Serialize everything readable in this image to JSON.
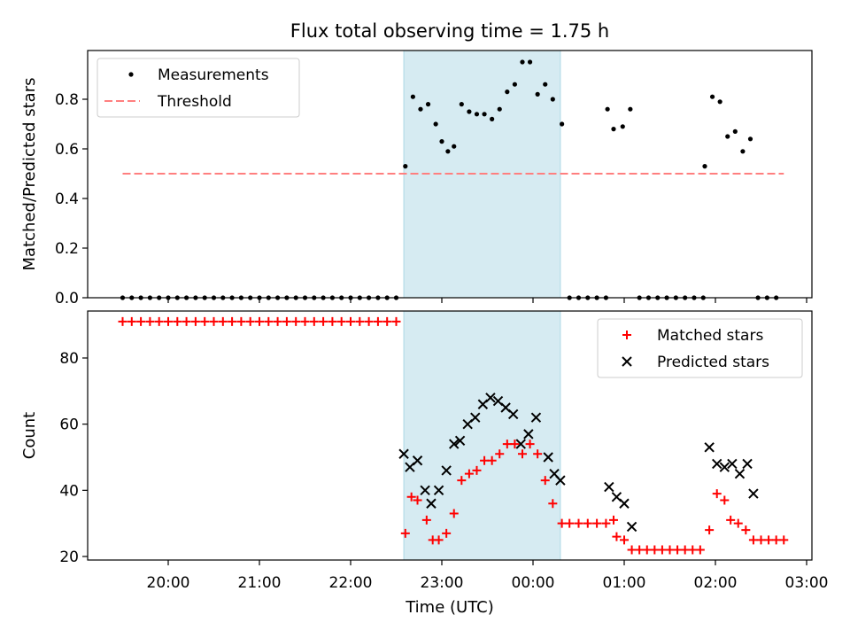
{
  "chart_data": [
    {
      "type": "scatter",
      "title": "Flux total observing time = 1.75 h",
      "xlabel": "",
      "ylabel": "Matched/Predicted stars",
      "ylim": [
        0,
        1.0
      ],
      "yticks": [
        "0.0",
        "0.2",
        "0.4",
        "0.6",
        "0.8"
      ],
      "shaded_interval": [
        "22:35",
        "00:18"
      ],
      "shade_color": "#add8e6",
      "legend_position": "top-left",
      "series": [
        {
          "name": "Measurements",
          "marker": "dot",
          "color": "#000000",
          "points": [
            [
              "19:30",
              0
            ],
            [
              "19:36",
              0
            ],
            [
              "19:42",
              0
            ],
            [
              "19:48",
              0
            ],
            [
              "19:54",
              0
            ],
            [
              "20:00",
              0
            ],
            [
              "20:06",
              0
            ],
            [
              "20:12",
              0
            ],
            [
              "20:18",
              0
            ],
            [
              "20:24",
              0
            ],
            [
              "20:30",
              0
            ],
            [
              "20:36",
              0
            ],
            [
              "20:42",
              0
            ],
            [
              "20:48",
              0
            ],
            [
              "20:54",
              0
            ],
            [
              "21:00",
              0
            ],
            [
              "21:06",
              0
            ],
            [
              "21:12",
              0
            ],
            [
              "21:18",
              0
            ],
            [
              "21:24",
              0
            ],
            [
              "21:30",
              0
            ],
            [
              "21:36",
              0
            ],
            [
              "21:42",
              0
            ],
            [
              "21:48",
              0
            ],
            [
              "21:54",
              0
            ],
            [
              "22:00",
              0
            ],
            [
              "22:06",
              0
            ],
            [
              "22:12",
              0
            ],
            [
              "22:18",
              0
            ],
            [
              "22:24",
              0
            ],
            [
              "22:30",
              0
            ],
            [
              "22:36",
              0.53
            ],
            [
              "22:41",
              0.81
            ],
            [
              "22:46",
              0.76
            ],
            [
              "22:51",
              0.78
            ],
            [
              "22:56",
              0.7
            ],
            [
              "23:00",
              0.63
            ],
            [
              "23:04",
              0.59
            ],
            [
              "23:08",
              0.61
            ],
            [
              "23:13",
              0.78
            ],
            [
              "23:18",
              0.75
            ],
            [
              "23:23",
              0.74
            ],
            [
              "23:28",
              0.74
            ],
            [
              "23:33",
              0.72
            ],
            [
              "23:38",
              0.76
            ],
            [
              "23:43",
              0.83
            ],
            [
              "23:48",
              0.86
            ],
            [
              "23:53",
              0.95
            ],
            [
              "23:58",
              0.95
            ],
            [
              "00:03",
              0.82
            ],
            [
              "00:08",
              0.86
            ],
            [
              "00:13",
              0.8
            ],
            [
              "00:19",
              0.7
            ],
            [
              "00:24",
              0
            ],
            [
              "00:30",
              0
            ],
            [
              "00:36",
              0
            ],
            [
              "00:42",
              0
            ],
            [
              "00:48",
              0
            ],
            [
              "00:49",
              0.76
            ],
            [
              "00:53",
              0.68
            ],
            [
              "00:59",
              0.69
            ],
            [
              "01:04",
              0.76
            ],
            [
              "01:10",
              0
            ],
            [
              "01:16",
              0
            ],
            [
              "01:22",
              0
            ],
            [
              "01:28",
              0
            ],
            [
              "01:34",
              0
            ],
            [
              "01:40",
              0
            ],
            [
              "01:46",
              0
            ],
            [
              "01:52",
              0
            ],
            [
              "01:53",
              0.53
            ],
            [
              "01:58",
              0.81
            ],
            [
              "02:03",
              0.79
            ],
            [
              "02:08",
              0.65
            ],
            [
              "02:13",
              0.67
            ],
            [
              "02:18",
              0.59
            ],
            [
              "02:23",
              0.64
            ],
            [
              "02:28",
              0
            ],
            [
              "02:34",
              0
            ],
            [
              "02:40",
              0
            ]
          ]
        },
        {
          "name": "Threshold",
          "marker": "dashed-line",
          "color": "#ff7f7f",
          "points": [
            [
              "19:30",
              0.5
            ],
            [
              "02:45",
              0.5
            ]
          ]
        }
      ]
    },
    {
      "type": "scatter",
      "title": "",
      "xlabel": "Time (UTC)",
      "ylabel": "Count",
      "ylim": [
        19,
        93
      ],
      "yticks": [
        "20",
        "40",
        "60",
        "80"
      ],
      "xticks": [
        "20:00",
        "21:00",
        "22:00",
        "23:00",
        "00:00",
        "01:00",
        "02:00",
        "03:00"
      ],
      "shaded_interval": [
        "22:35",
        "00:18"
      ],
      "shade_color": "#add8e6",
      "legend_position": "top-right",
      "series": [
        {
          "name": "Matched stars",
          "marker": "plus",
          "color": "#ff0000",
          "points": [
            [
              "19:30",
              91
            ],
            [
              "19:36",
              91
            ],
            [
              "19:42",
              91
            ],
            [
              "19:48",
              91
            ],
            [
              "19:54",
              91
            ],
            [
              "20:00",
              91
            ],
            [
              "20:06",
              91
            ],
            [
              "20:12",
              91
            ],
            [
              "20:18",
              91
            ],
            [
              "20:24",
              91
            ],
            [
              "20:30",
              91
            ],
            [
              "20:36",
              91
            ],
            [
              "20:42",
              91
            ],
            [
              "20:48",
              91
            ],
            [
              "20:54",
              91
            ],
            [
              "21:00",
              91
            ],
            [
              "21:06",
              91
            ],
            [
              "21:12",
              91
            ],
            [
              "21:18",
              91
            ],
            [
              "21:24",
              91
            ],
            [
              "21:30",
              91
            ],
            [
              "21:36",
              91
            ],
            [
              "21:42",
              91
            ],
            [
              "21:48",
              91
            ],
            [
              "21:54",
              91
            ],
            [
              "22:00",
              91
            ],
            [
              "22:06",
              91
            ],
            [
              "22:12",
              91
            ],
            [
              "22:18",
              91
            ],
            [
              "22:24",
              91
            ],
            [
              "22:30",
              91
            ],
            [
              "22:36",
              27
            ],
            [
              "22:40",
              38
            ],
            [
              "22:44",
              37
            ],
            [
              "22:50",
              31
            ],
            [
              "22:54",
              25
            ],
            [
              "22:58",
              25
            ],
            [
              "23:03",
              27
            ],
            [
              "23:08",
              33
            ],
            [
              "23:13",
              43
            ],
            [
              "23:18",
              45
            ],
            [
              "23:23",
              46
            ],
            [
              "23:28",
              49
            ],
            [
              "23:33",
              49
            ],
            [
              "23:38",
              51
            ],
            [
              "23:43",
              54
            ],
            [
              "23:48",
              54
            ],
            [
              "23:53",
              51
            ],
            [
              "23:58",
              54
            ],
            [
              "00:03",
              51
            ],
            [
              "00:08",
              43
            ],
            [
              "00:13",
              36
            ],
            [
              "00:19",
              30
            ],
            [
              "00:24",
              30
            ],
            [
              "00:30",
              30
            ],
            [
              "00:36",
              30
            ],
            [
              "00:42",
              30
            ],
            [
              "00:48",
              30
            ],
            [
              "00:53",
              31
            ],
            [
              "00:55",
              26
            ],
            [
              "01:00",
              25
            ],
            [
              "01:05",
              22
            ],
            [
              "01:10",
              22
            ],
            [
              "01:15",
              22
            ],
            [
              "01:20",
              22
            ],
            [
              "01:25",
              22
            ],
            [
              "01:30",
              22
            ],
            [
              "01:35",
              22
            ],
            [
              "01:40",
              22
            ],
            [
              "01:45",
              22
            ],
            [
              "01:50",
              22
            ],
            [
              "01:56",
              28
            ],
            [
              "02:01",
              39
            ],
            [
              "02:06",
              37
            ],
            [
              "02:10",
              31
            ],
            [
              "02:15",
              30
            ],
            [
              "02:20",
              28
            ],
            [
              "02:25",
              25
            ],
            [
              "02:30",
              25
            ],
            [
              "02:35",
              25
            ],
            [
              "02:40",
              25
            ],
            [
              "02:45",
              25
            ]
          ]
        },
        {
          "name": "Predicted stars",
          "marker": "x",
          "color": "#000000",
          "points": [
            [
              "22:35",
              51
            ],
            [
              "22:39",
              47
            ],
            [
              "22:44",
              49
            ],
            [
              "22:49",
              40
            ],
            [
              "22:53",
              36
            ],
            [
              "22:58",
              40
            ],
            [
              "23:03",
              46
            ],
            [
              "23:08",
              54
            ],
            [
              "23:12",
              55
            ],
            [
              "23:17",
              60
            ],
            [
              "23:22",
              62
            ],
            [
              "23:27",
              66
            ],
            [
              "23:32",
              68
            ],
            [
              "23:37",
              67
            ],
            [
              "23:42",
              65
            ],
            [
              "23:47",
              63
            ],
            [
              "23:52",
              54
            ],
            [
              "23:57",
              57
            ],
            [
              "00:02",
              62
            ],
            [
              "00:10",
              50
            ],
            [
              "00:14",
              45
            ],
            [
              "00:18",
              43
            ],
            [
              "00:50",
              41
            ],
            [
              "00:55",
              38
            ],
            [
              "01:00",
              36
            ],
            [
              "01:05",
              29
            ],
            [
              "01:56",
              53
            ],
            [
              "02:01",
              48
            ],
            [
              "02:06",
              47
            ],
            [
              "02:11",
              48
            ],
            [
              "02:16",
              45
            ],
            [
              "02:21",
              48
            ],
            [
              "02:25",
              39
            ]
          ]
        }
      ]
    }
  ]
}
